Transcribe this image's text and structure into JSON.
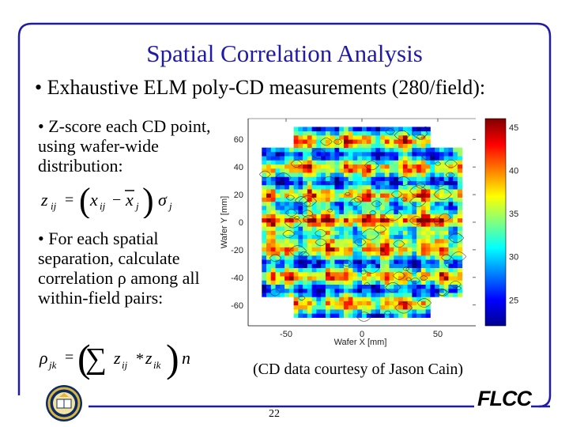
{
  "slide": {
    "title": "Spatial Correlation Analysis",
    "bullet_main": "• Exhaustive ELM poly-CD measurements (280/field):",
    "bullet_z": "• Z-score each CD point, using wafer-wide distribution:",
    "bullet_rho": "• For each spatial separation, calculate correlation ρ among all within-field pairs:",
    "credit": "(CD data courtesy of Jason Cain)",
    "page_number": "22",
    "brand": "FLCC"
  },
  "formula_z": {
    "lhs": "z",
    "lhs_sub": "ij",
    "eq": "=",
    "x": "x",
    "x_sub": "ij",
    "minus": "−",
    "xbar": "x",
    "xbar_sub": "j",
    "sigma": "σ",
    "sigma_sub": "j"
  },
  "formula_rho": {
    "lhs": "ρ",
    "lhs_sub": "jk",
    "eq": "=",
    "sum": "∑",
    "z1": "z",
    "z1_sub": "ij",
    "star": "*",
    "z2": "z",
    "z2_sub": "ik",
    "n": "n"
  },
  "chart_data": {
    "type": "heatmap",
    "xlabel": "Wafer X [mm]",
    "ylabel": "Wafer Y [mm]",
    "x_ticks": [
      "-50",
      "0",
      "50"
    ],
    "y_ticks": [
      "60",
      "40",
      "20",
      "0",
      "-20",
      "-40",
      "-60"
    ],
    "colorbar_ticks": [
      "45",
      "40",
      "35",
      "30",
      "25"
    ],
    "colorbar_range": [
      22,
      46
    ],
    "colormap": "jet",
    "xlim": [
      -75,
      75
    ],
    "ylim": [
      -75,
      75
    ]
  }
}
